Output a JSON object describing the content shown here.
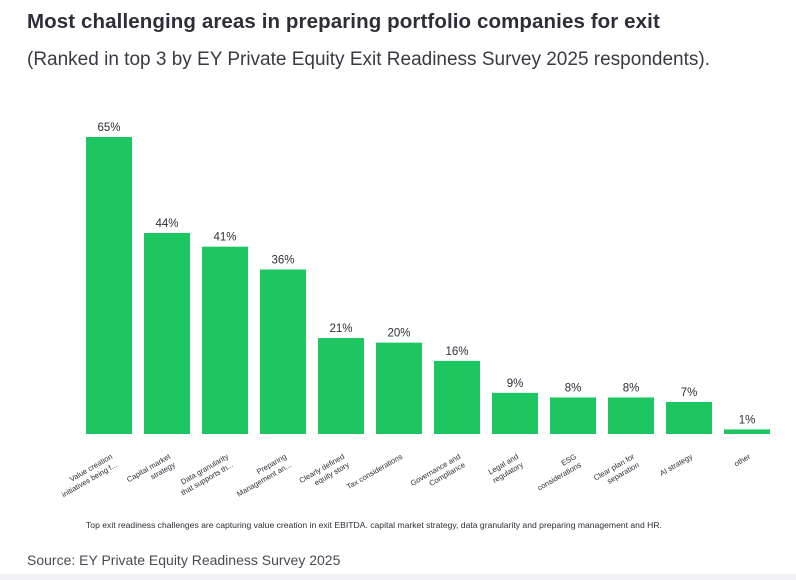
{
  "header": {
    "title": "Most challenging areas in preparing portfolio companies for exit",
    "subtitle": "(Ranked in top 3 by EY Private Equity Exit Readiness Survey 2025 respondents)."
  },
  "footnote": "Top exit readiness challenges are capturing value creation in exit EBITDA. capital market strategy, data granularity and preparing management and HR.",
  "source": "Source: EY Private Equity Readiness Survey 2025",
  "colors": {
    "bar": "#1ec662",
    "text": "#2e2e38"
  },
  "chart_data": {
    "type": "bar",
    "title": "Most challenging areas in preparing portfolio companies for exit",
    "xlabel": "",
    "ylabel": "",
    "ylim": [
      0,
      65
    ],
    "grid": false,
    "categories": [
      [
        "Value creation",
        "initiatives being f..."
      ],
      [
        "Capital market",
        "strategy"
      ],
      [
        "Data granularity",
        "that supports th..."
      ],
      [
        "Preparing",
        "Management an..."
      ],
      [
        "Clearly defined",
        "equity story"
      ],
      [
        "Tax considerations"
      ],
      [
        "Governance and",
        "Compliance"
      ],
      [
        "Legal and",
        "regulatory"
      ],
      [
        "ESG",
        "considerations"
      ],
      [
        "Clear plan for",
        "separation"
      ],
      [
        "AI strategy"
      ],
      [
        "other"
      ]
    ],
    "values": [
      65,
      44,
      41,
      36,
      21,
      20,
      16,
      9,
      8,
      8,
      7,
      1
    ],
    "data_labels": [
      "65%",
      "44%",
      "41%",
      "36%",
      "21%",
      "20%",
      "16%",
      "9%",
      "8%",
      "8%",
      "7%",
      "1%"
    ]
  }
}
